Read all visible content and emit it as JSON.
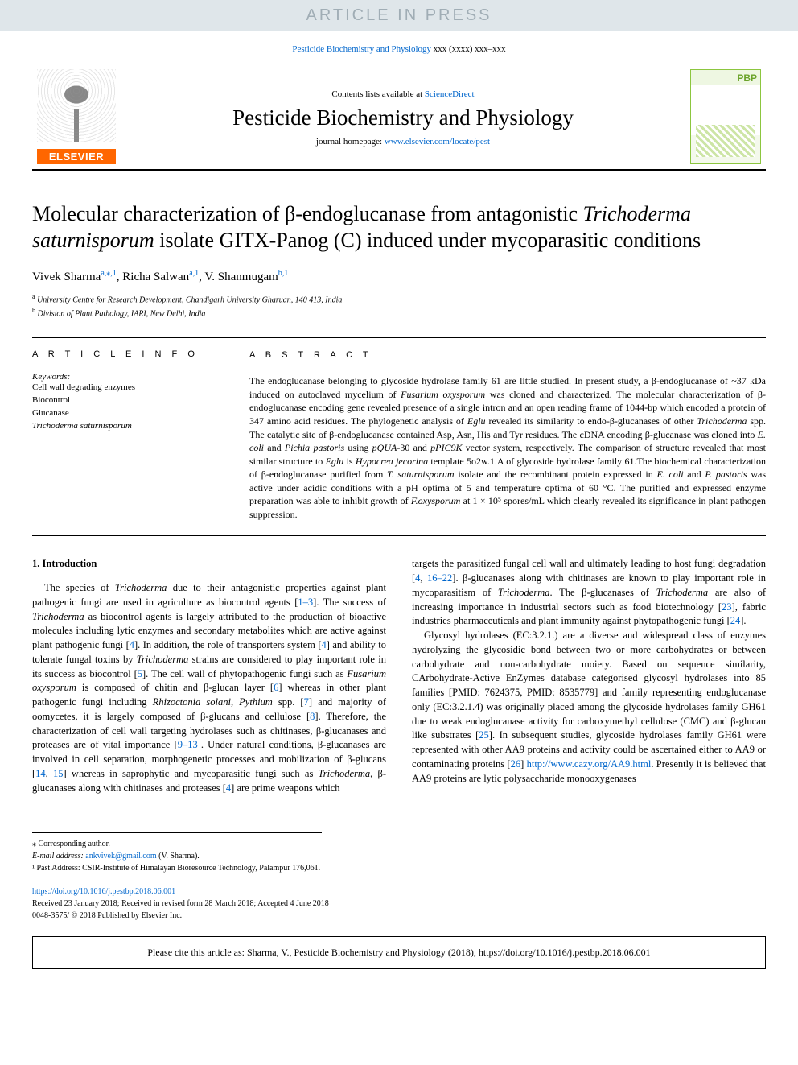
{
  "banner": "ARTICLE IN PRESS",
  "journal_ref": {
    "journal": "Pesticide Biochemistry and Physiology",
    "vol": " xxx (xxxx) xxx–xxx"
  },
  "header": {
    "contents_prefix": "Contents lists available at ",
    "contents_link": "ScienceDirect",
    "journal_name": "Pesticide Biochemistry and Physiology",
    "homepage_prefix": "journal homepage: ",
    "homepage_link": "www.elsevier.com/locate/pest",
    "elsevier": "ELSEVIER",
    "cover_badge": "PBP"
  },
  "title": {
    "t1": "Molecular characterization of β-endoglucanase from antagonistic ",
    "t2_ital": "Trichoderma saturnisporum",
    "t3": " isolate GITX-Panog (C) induced under mycoparasitic conditions"
  },
  "authors": {
    "a1": "Vivek Sharma",
    "a1_aff": "a,⁎,1",
    "a2": "Richa Salwan",
    "a2_aff": "a,1",
    "a3": "V. Shanmugam",
    "a3_aff": "b,1"
  },
  "affiliations": {
    "a_tag": "a",
    "a_txt": " University Centre for Research Development, Chandigarh University Gharuan, 140 413, India",
    "b_tag": "b",
    "b_txt": " Division of Plant Pathology, IARI, New Delhi, India"
  },
  "article_info": {
    "head": "A R T I C L E  I N F O",
    "kw_label": "Keywords:",
    "k1": "Cell wall degrading enzymes",
    "k2": "Biocontrol",
    "k3": "Glucanase",
    "k4": "Trichoderma saturnisporum"
  },
  "abstract": {
    "head": "A B S T R A C T",
    "p1a": "The endoglucanase belonging to glycoside hydrolase family 61 are little studied. In present study, a β-endoglucanase of ~37 kDa induced on autoclaved mycelium of ",
    "p1b_ital": "Fusarium oxysporum",
    "p1c": " was cloned and characterized. The molecular characterization of β-endoglucanase encoding gene revealed presence of a single intron and an open reading frame of 1044-bp which encoded a protein of 347 amino acid residues. The phylogenetic analysis of ",
    "p1d_ital": "Eglu",
    "p1e": " revealed its similarity to endo-β-glucanases of other ",
    "p1f_ital": "Trichoderma",
    "p1g": " spp. The catalytic site of β-endoglucanase contained Asp, Asn, His and Tyr residues. The cDNA encoding β-glucanase was cloned into ",
    "p1h_ital": "E. coli",
    "p1i": " and ",
    "p1j_ital": "Pichia pastoris",
    "p1k": " using ",
    "p1l_ital": "pQUA",
    "p1m": "-30 and ",
    "p1n_ital": "pPIC9K",
    "p1o": " vector system, respectively. The comparison of structure revealed that most similar structure to ",
    "p1p_ital": "Eglu",
    "p1q": " is ",
    "p1r_ital": "Hypocrea jecorina",
    "p1s": " template 5o2w.1.A of glycoside hydrolase family 61.The biochemical characterization of β-endoglucanase purified from ",
    "p1t_ital": "T. saturnisporum",
    "p1u": " isolate and the recombinant protein expressed in ",
    "p1v_ital": "E. coli",
    "p1w": " and ",
    "p1x_ital": "P. pastoris",
    "p1y": " was active under acidic conditions with a pH optima of 5 and temperature optima of 60 °C. The purified and expressed enzyme preparation was able to inhibit growth of ",
    "p1z_ital": "F.oxysporum",
    "p1zz": " at 1 × 10⁵ spores/mL which clearly revealed its significance in plant pathogen suppression."
  },
  "intro": {
    "head": "1. Introduction",
    "col1": {
      "s1": "The species of ",
      "s1i": "Trichoderma",
      "s2": " due to their antagonistic properties against plant pathogenic fungi are used in agriculture as biocontrol agents [",
      "r1": "1–3",
      "s3": "]. The success of ",
      "s3i": "Trichoderma",
      "s4": " as biocontrol agents is largely attributed to the production of bioactive molecules including lytic enzymes and secondary metabolites which are active against plant pathogenic fungi [",
      "r2": "4",
      "s5": "]. In addition, the role of transporters system [",
      "r3": "4",
      "s6": "] and ability to tolerate fungal toxins by ",
      "s6i": "Trichoderma",
      "s7": " strains are considered to play important role in its success as biocontrol [",
      "r4": "5",
      "s8": "]. The cell wall of phytopathogenic fungi such as ",
      "s8i": "Fusarium oxysporum",
      "s9": " is composed of chitin and β-glucan layer [",
      "r5": "6",
      "s10": "] whereas in other plant pathogenic fungi including ",
      "s10i": "Rhizoctonia solani",
      "s11": ", ",
      "s11i": "Pythium",
      "s12": " spp. [",
      "r6": "7",
      "s13": "] and majority of oomycetes, it is largely composed of β-glucans and cellulose [",
      "r7": "8",
      "s14": "]. Therefore, the characterization of cell wall targeting hydrolases such as chitinases, β-glucanases and proteases are of vital importance [",
      "r8": "9–13",
      "s15": "]. Under natural conditions, β-glucanases are involved in cell separation, morphogenetic processes and mobilization of β-glucans [",
      "r9": "14",
      "s16": ", ",
      "r10": "15",
      "s17": "] whereas in saprophytic and mycoparasitic fungi such as ",
      "s17i": "Trichoderma",
      "s18": ", β-glucanases along with chitinases and proteases [",
      "r11": "4",
      "s19": "] are prime weapons which"
    },
    "col2": {
      "s1": "targets the parasitized fungal cell wall and ultimately leading to host fungi degradation [",
      "r1": "4",
      "s2": ", ",
      "r2": "16–22",
      "s3": "]. β-glucanases along with chitinases are known to play important role in mycoparasitism of ",
      "s3i": "Trichoderma",
      "s4": ". The β-glucanases of ",
      "s4i": "Trichoderma",
      "s5": " are also of increasing importance in industrial sectors such as food biotechnology [",
      "r3": "23",
      "s6": "], fabric industries pharmaceuticals and plant immunity against phytopathogenic fungi [",
      "r4": "24",
      "s7": "].",
      "p2a": "Glycosyl hydrolases (EC:3.2.1.) are a diverse and widespread class of enzymes hydrolyzing the glycosidic bond between two or more carbohydrates or between carbohydrate and non-carbohydrate moiety. Based on sequence similarity, CArbohydrate-Active EnZymes database categorised glycosyl hydrolases into 85 families [PMID: 7624375, PMID: 8535779] and family representing endoglucanase only (EC:3.2.1.4) was originally placed among the glycoside hydrolases family GH61 due to weak endoglucanase activity for carboxymethyl cellulose (CMC) and β-glucan like substrates [",
      "r5": "25",
      "p2b": "]. In subsequent studies, glycoside hydrolases family GH61 were represented with other AA9 proteins and activity could be ascertained either to AA9 or contaminating proteins [",
      "r6": "26",
      "p2c": "] ",
      "link": "http://www.cazy.org/AA9.html",
      "p2d": ". Presently it is believed that AA9 proteins are lytic polysaccharide monooxygenases"
    }
  },
  "footnotes": {
    "corr": "⁎ Corresponding author.",
    "email_label": "E-mail address:",
    "email": "ankvivek@gmail.com",
    "email_who": " (V. Sharma).",
    "past": "¹ Past Address: CSIR-Institute of Himalayan Bioresource Technology, Palampur 176,061."
  },
  "pubinfo": {
    "doi": "https://doi.org/10.1016/j.pestbp.2018.06.001",
    "received": "Received 23 January 2018; Received in revised form 28 March 2018; Accepted 4 June 2018",
    "copyright": "0048-3575/ © 2018 Published by Elsevier Inc."
  },
  "citebox": "Please cite this article as: Sharma, V., Pesticide Biochemistry and Physiology (2018), https://doi.org/10.1016/j.pestbp.2018.06.001"
}
